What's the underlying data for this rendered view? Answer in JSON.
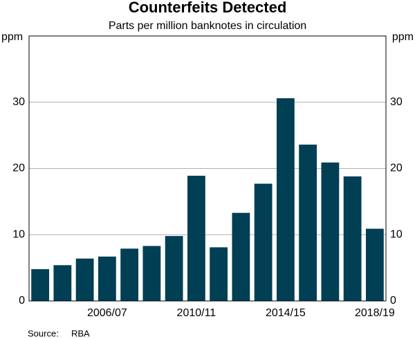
{
  "chart_data": {
    "type": "bar",
    "title": "Counterfeits Detected",
    "subtitle": "Parts per million banknotes in circulation",
    "ylabel": "ppm",
    "y2label": "ppm",
    "categories": [
      null,
      null,
      null,
      "2006/07",
      null,
      null,
      null,
      "2010/11",
      null,
      null,
      null,
      "2014/15",
      null,
      null,
      null,
      "2018/19"
    ],
    "values": [
      4.8,
      5.4,
      6.4,
      6.7,
      7.9,
      8.3,
      9.8,
      18.9,
      8.1,
      13.3,
      17.7,
      30.6,
      23.6,
      20.9,
      18.8,
      10.9
    ],
    "color": "#003f54",
    "ylim": [
      0,
      40
    ],
    "yticks": [
      0,
      10,
      20,
      30
    ],
    "y2lim": [
      0,
      40
    ],
    "y2ticks": [
      0,
      10,
      20,
      30
    ],
    "grid": true,
    "source_label": "Source:",
    "source": "RBA"
  }
}
